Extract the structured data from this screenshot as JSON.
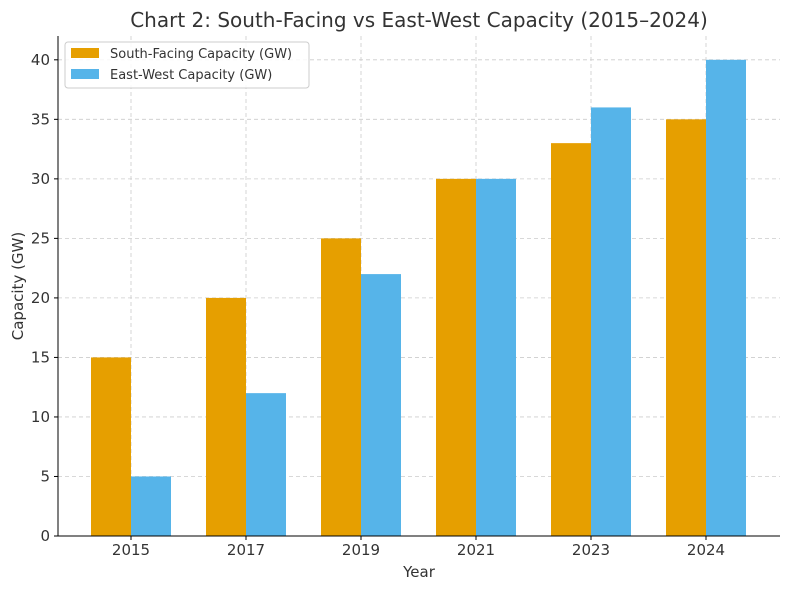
{
  "chart_data": {
    "type": "bar",
    "title": "Chart 2: South-Facing vs East-West Capacity (2015–2024)",
    "xlabel": "Year",
    "ylabel": "Capacity (GW)",
    "categories": [
      "2015",
      "2017",
      "2019",
      "2021",
      "2023",
      "2024"
    ],
    "series": [
      {
        "name": "South-Facing Capacity (GW)",
        "values": [
          15,
          20,
          25,
          30,
          33,
          35
        ],
        "color": "#E69F00"
      },
      {
        "name": "East-West Capacity (GW)",
        "values": [
          5,
          12,
          22,
          30,
          36,
          40
        ],
        "color": "#56B4E9"
      }
    ],
    "ylim": [
      0,
      42
    ],
    "yticks": [
      0,
      5,
      10,
      15,
      20,
      25,
      30,
      35,
      40
    ],
    "grid": true,
    "legend": "top-left"
  }
}
